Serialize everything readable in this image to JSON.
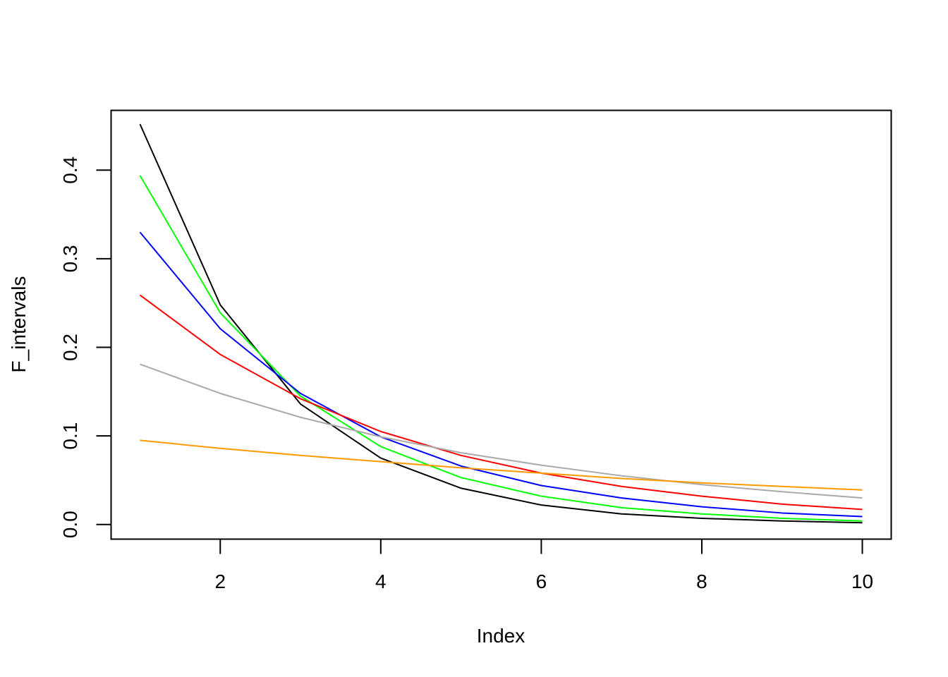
{
  "chart_data": {
    "type": "line",
    "title": "",
    "xlabel": "Index",
    "ylabel": "F_intervals",
    "x": [
      1,
      2,
      3,
      4,
      5,
      6,
      7,
      8,
      9,
      10
    ],
    "xticks": [
      "2",
      "4",
      "6",
      "8",
      "10"
    ],
    "yticks": [
      "0.0",
      "0.1",
      "0.2",
      "0.3",
      "0.4"
    ],
    "xlim": [
      0.64,
      10.36
    ],
    "ylim": [
      -0.0165,
      0.4675
    ],
    "grid": false,
    "legend": "none",
    "series": [
      {
        "color": "#000000",
        "values": [
          0.452,
          0.248,
          0.136,
          0.075,
          0.041,
          0.022,
          0.012,
          0.007,
          0.004,
          0.002
        ]
      },
      {
        "color": "#00ff00",
        "values": [
          0.394,
          0.239,
          0.145,
          0.088,
          0.053,
          0.032,
          0.019,
          0.012,
          0.007,
          0.004
        ]
      },
      {
        "color": "#0000ff",
        "values": [
          0.33,
          0.221,
          0.148,
          0.099,
          0.066,
          0.044,
          0.03,
          0.02,
          0.013,
          0.009
        ]
      },
      {
        "color": "#ff0000",
        "values": [
          0.259,
          0.192,
          0.142,
          0.105,
          0.078,
          0.058,
          0.043,
          0.032,
          0.023,
          0.017
        ]
      },
      {
        "color": "#aaaaaa",
        "values": [
          0.181,
          0.148,
          0.121,
          0.099,
          0.081,
          0.067,
          0.055,
          0.045,
          0.037,
          0.03
        ]
      },
      {
        "color": "#ff9900",
        "values": [
          0.095,
          0.086,
          0.078,
          0.071,
          0.064,
          0.058,
          0.052,
          0.047,
          0.043,
          0.039
        ]
      }
    ]
  }
}
